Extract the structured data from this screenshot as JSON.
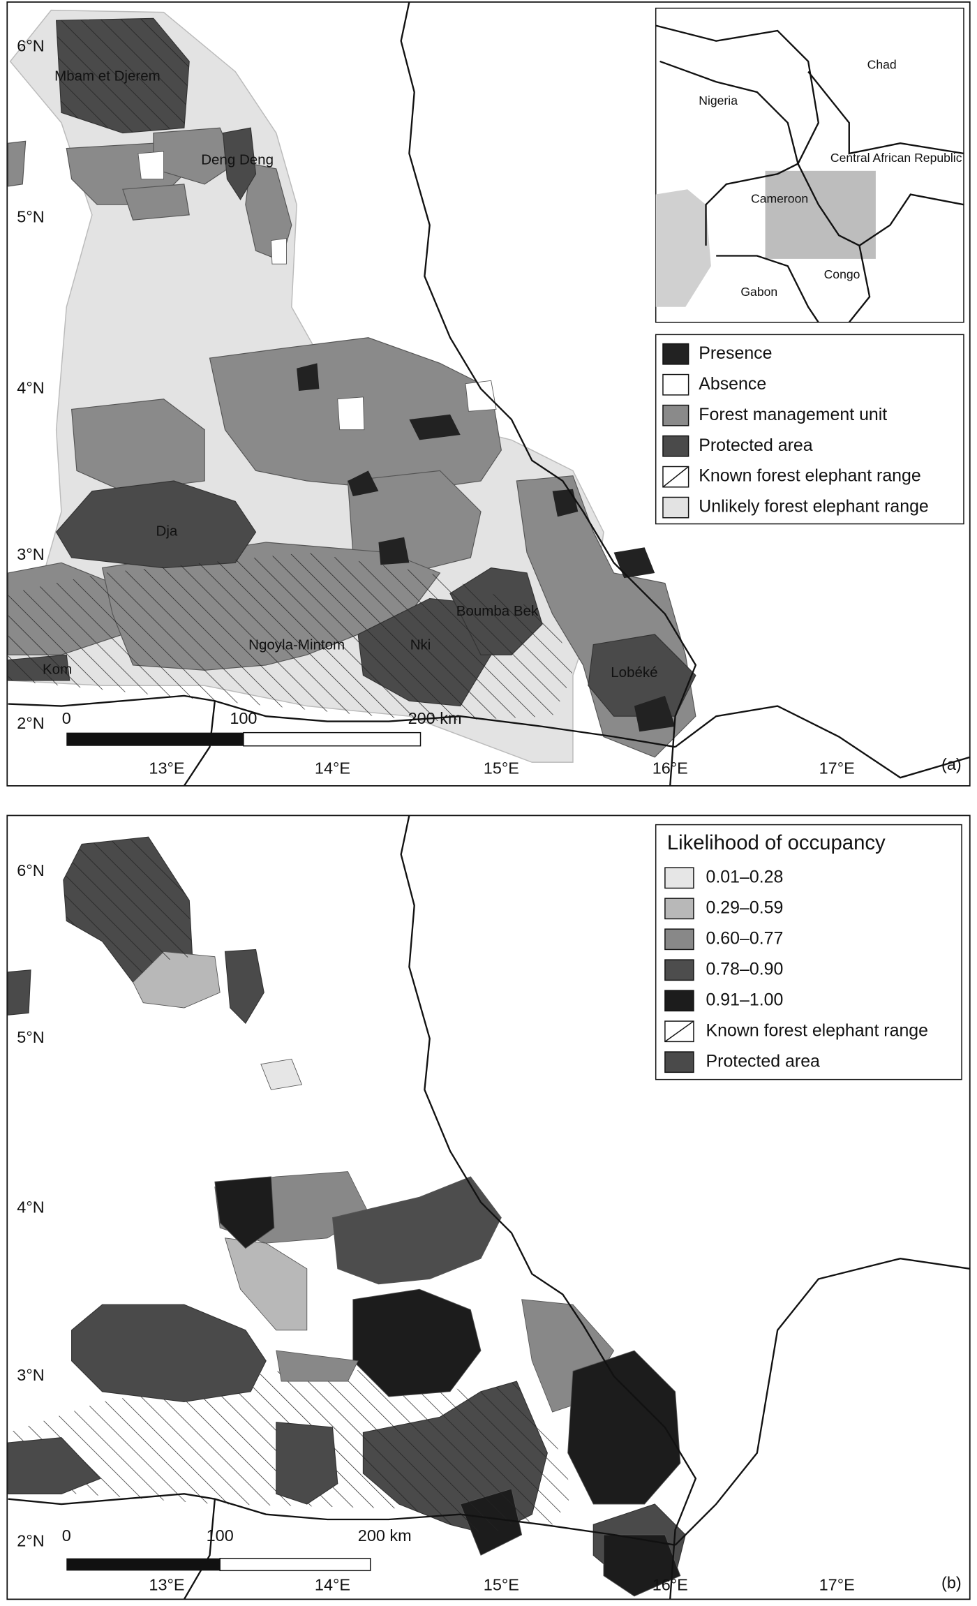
{
  "panel_a": {
    "panel_label": "(a)",
    "lat_labels": [
      "6°N",
      "5°N",
      "4°N",
      "3°N",
      "2°N"
    ],
    "lon_labels": [
      "13°E",
      "14°E",
      "15°E",
      "16°E",
      "17°E"
    ],
    "place_labels": [
      "Mbam et Djerem",
      "Deng Deng",
      "Dja",
      "Ngoyla-Mintom",
      "Nki",
      "Boumba Bek",
      "Kom",
      "Lobéké"
    ],
    "scale_bar": [
      "0",
      "100",
      "200 km"
    ],
    "inset_labels": [
      "Chad",
      "Nigeria",
      "Central African Republic",
      "Cameroon",
      "Congo",
      "Gabon"
    ],
    "legend": [
      "Presence",
      "Absence",
      "Forest management unit",
      "Protected area",
      "Known forest elephant range",
      "Unlikely forest elephant range"
    ]
  },
  "panel_b": {
    "panel_label": "(b)",
    "lat_labels": [
      "6°N",
      "5°N",
      "4°N",
      "3°N",
      "2°N"
    ],
    "lon_labels": [
      "13°E",
      "14°E",
      "15°E",
      "16°E",
      "17°E"
    ],
    "scale_bar": [
      "0",
      "100",
      "200 km"
    ],
    "legend_title": "Likelihood of occupancy",
    "legend": [
      "0.01–0.28",
      "0.29–0.59",
      "0.60–0.77",
      "0.78–0.90",
      "0.91–1.00",
      "Known forest elephant range",
      "Protected area"
    ]
  }
}
